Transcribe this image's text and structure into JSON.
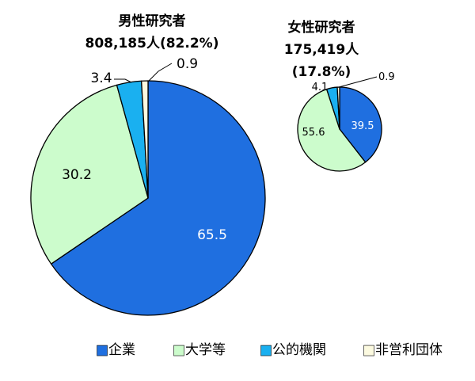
{
  "colors": {
    "企業": "#1f6fe0",
    "大学等": "#ccfccc",
    "公的機関": "#1ab0f0",
    "非営利団体": "#fcfae0",
    "stroke": "#000000"
  },
  "chart_data": [
    {
      "type": "pie",
      "title_lines": [
        "男性研究者",
        "808,185人(82.2%)"
      ],
      "categories": [
        "企業",
        "大学等",
        "公的機関",
        "非営利団体"
      ],
      "values": [
        65.5,
        30.2,
        3.4,
        0.9
      ],
      "value_labels": [
        "65.5",
        "30.2",
        "3.4",
        "0.9"
      ]
    },
    {
      "type": "pie",
      "title_lines": [
        "女性研究者",
        "175,419人",
        "(17.8%)"
      ],
      "categories": [
        "企業",
        "大学等",
        "公的機関",
        "非営利団体"
      ],
      "values": [
        39.5,
        55.6,
        4.1,
        0.9
      ],
      "value_labels": [
        "39.5",
        "55.6",
        "4.1",
        "0.9"
      ]
    }
  ],
  "legend": {
    "marker": "■",
    "items": [
      "企業",
      "大学等",
      "公的機関",
      "非営利団体"
    ]
  }
}
